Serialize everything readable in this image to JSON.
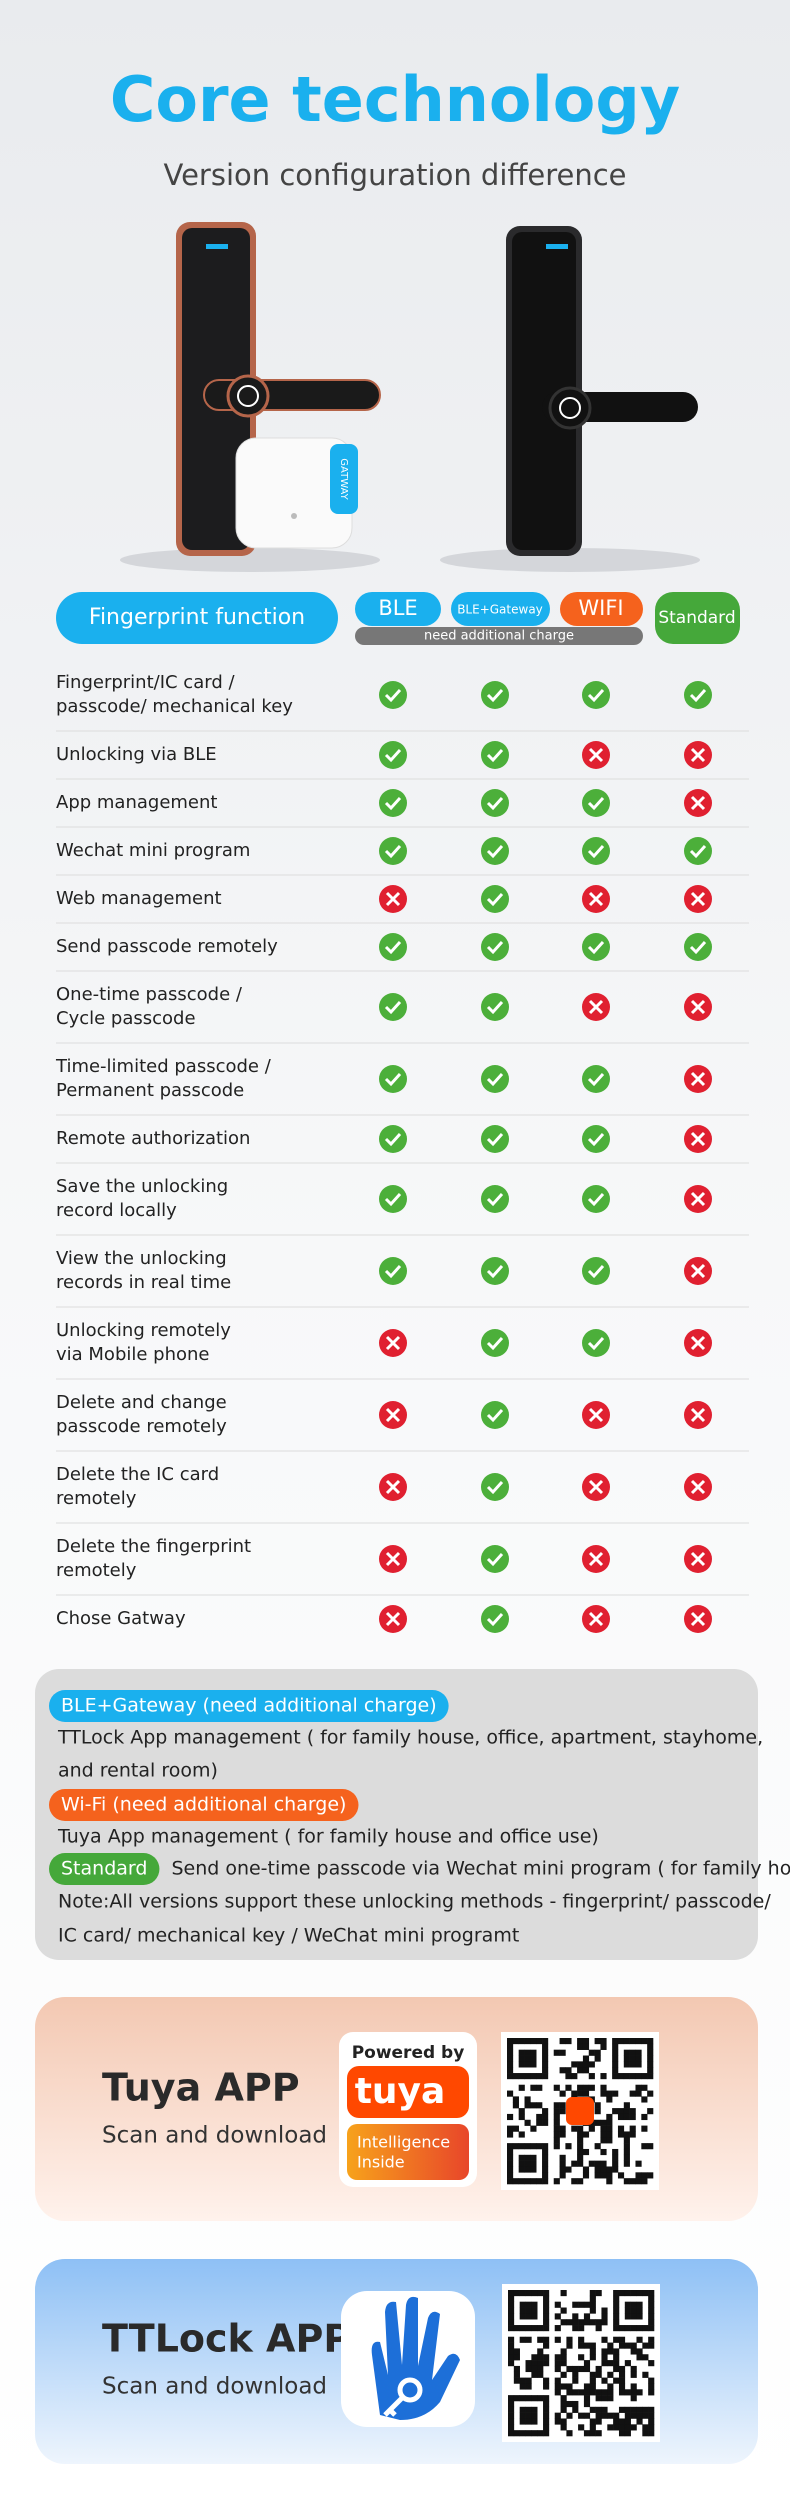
{
  "title": "Core technology",
  "subtitle": "Version configuration difference",
  "gateway_label": "GATWAY",
  "table": {
    "header": {
      "feature": "Fingerprint function",
      "columns": [
        "BLE",
        "BLE+Gateway",
        "WIFI",
        "Standard"
      ],
      "charge_note": "need additional charge"
    },
    "rows": [
      {
        "feature": [
          "Fingerprint/IC card /",
          "passcode/ mechanical key"
        ],
        "support": [
          true,
          true,
          true,
          true
        ]
      },
      {
        "feature": [
          "Unlocking via BLE"
        ],
        "support": [
          true,
          true,
          false,
          false
        ]
      },
      {
        "feature": [
          "App management"
        ],
        "support": [
          true,
          true,
          true,
          false
        ]
      },
      {
        "feature": [
          "Wechat mini program"
        ],
        "support": [
          true,
          true,
          true,
          true
        ]
      },
      {
        "feature": [
          "Web management"
        ],
        "support": [
          false,
          true,
          false,
          false
        ]
      },
      {
        "feature": [
          "Send passcode remotely"
        ],
        "support": [
          true,
          true,
          true,
          true
        ]
      },
      {
        "feature": [
          "One-time passcode /",
          "Cycle passcode"
        ],
        "support": [
          true,
          true,
          false,
          false
        ]
      },
      {
        "feature": [
          "Time-limited passcode /",
          "Permanent passcode"
        ],
        "support": [
          true,
          true,
          true,
          false
        ]
      },
      {
        "feature": [
          "Remote authorization"
        ],
        "support": [
          true,
          true,
          true,
          false
        ]
      },
      {
        "feature": [
          "Save the unlocking",
          "record locally"
        ],
        "support": [
          true,
          true,
          true,
          false
        ]
      },
      {
        "feature": [
          "View the unlocking",
          "records in real time"
        ],
        "support": [
          true,
          true,
          true,
          false
        ]
      },
      {
        "feature": [
          "Unlocking remotely",
          "via Mobile phone"
        ],
        "support": [
          false,
          true,
          true,
          false
        ]
      },
      {
        "feature": [
          "Delete and change",
          "passcode remotely"
        ],
        "support": [
          false,
          true,
          false,
          false
        ]
      },
      {
        "feature": [
          "Delete the IC card",
          "remotely"
        ],
        "support": [
          false,
          true,
          false,
          false
        ]
      },
      {
        "feature": [
          "Delete the fingerprint",
          "remotely"
        ],
        "support": [
          false,
          true,
          false,
          false
        ]
      },
      {
        "feature": [
          "Chose Gatway"
        ],
        "support": [
          false,
          true,
          false,
          false
        ]
      }
    ]
  },
  "notes": {
    "ble_tag": "BLE+Gateway (need additional charge)",
    "ble_text": [
      "TTLock App management ( for family house, office, apartment, stayhome,",
      "and rental room)"
    ],
    "wifi_tag": "Wi-Fi (need additional charge)",
    "wifi_text": "Tuya App management ( for family house and office use)",
    "standard_tag": "Standard",
    "standard_text": "Send one-time passcode via Wechat mini program ( for family house )",
    "note": [
      "Note:All versions support these unlocking methods - fingerprint/ passcode/",
      "IC card/ mechanical key / WeChat mini programt"
    ]
  },
  "apps": [
    {
      "name": "Tuya APP",
      "action": "Scan and download",
      "logo": {
        "top": "Powered by",
        "brand": "tuya",
        "bottom": [
          "Intelligence",
          "Inside"
        ]
      }
    },
    {
      "name": "TTLock APP",
      "action": "Scan and download"
    }
  ]
}
